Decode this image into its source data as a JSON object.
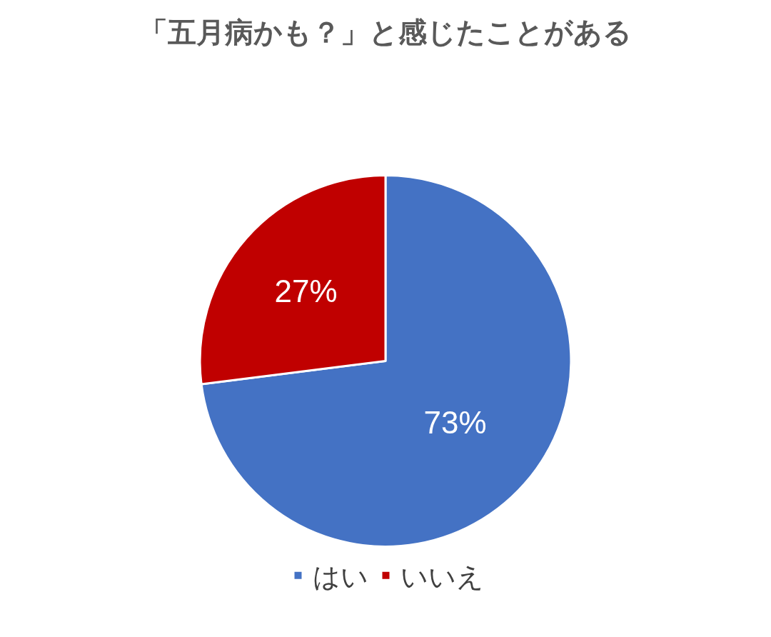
{
  "chart_data": {
    "type": "pie",
    "title": "「五月病かも？」と感じたことがある",
    "categories": [
      "はい",
      "いいえ"
    ],
    "values": [
      73,
      27
    ],
    "value_labels": [
      "73%",
      "27%"
    ],
    "colors": [
      "#4472c4",
      "#c00000"
    ],
    "legend": "bottom"
  }
}
